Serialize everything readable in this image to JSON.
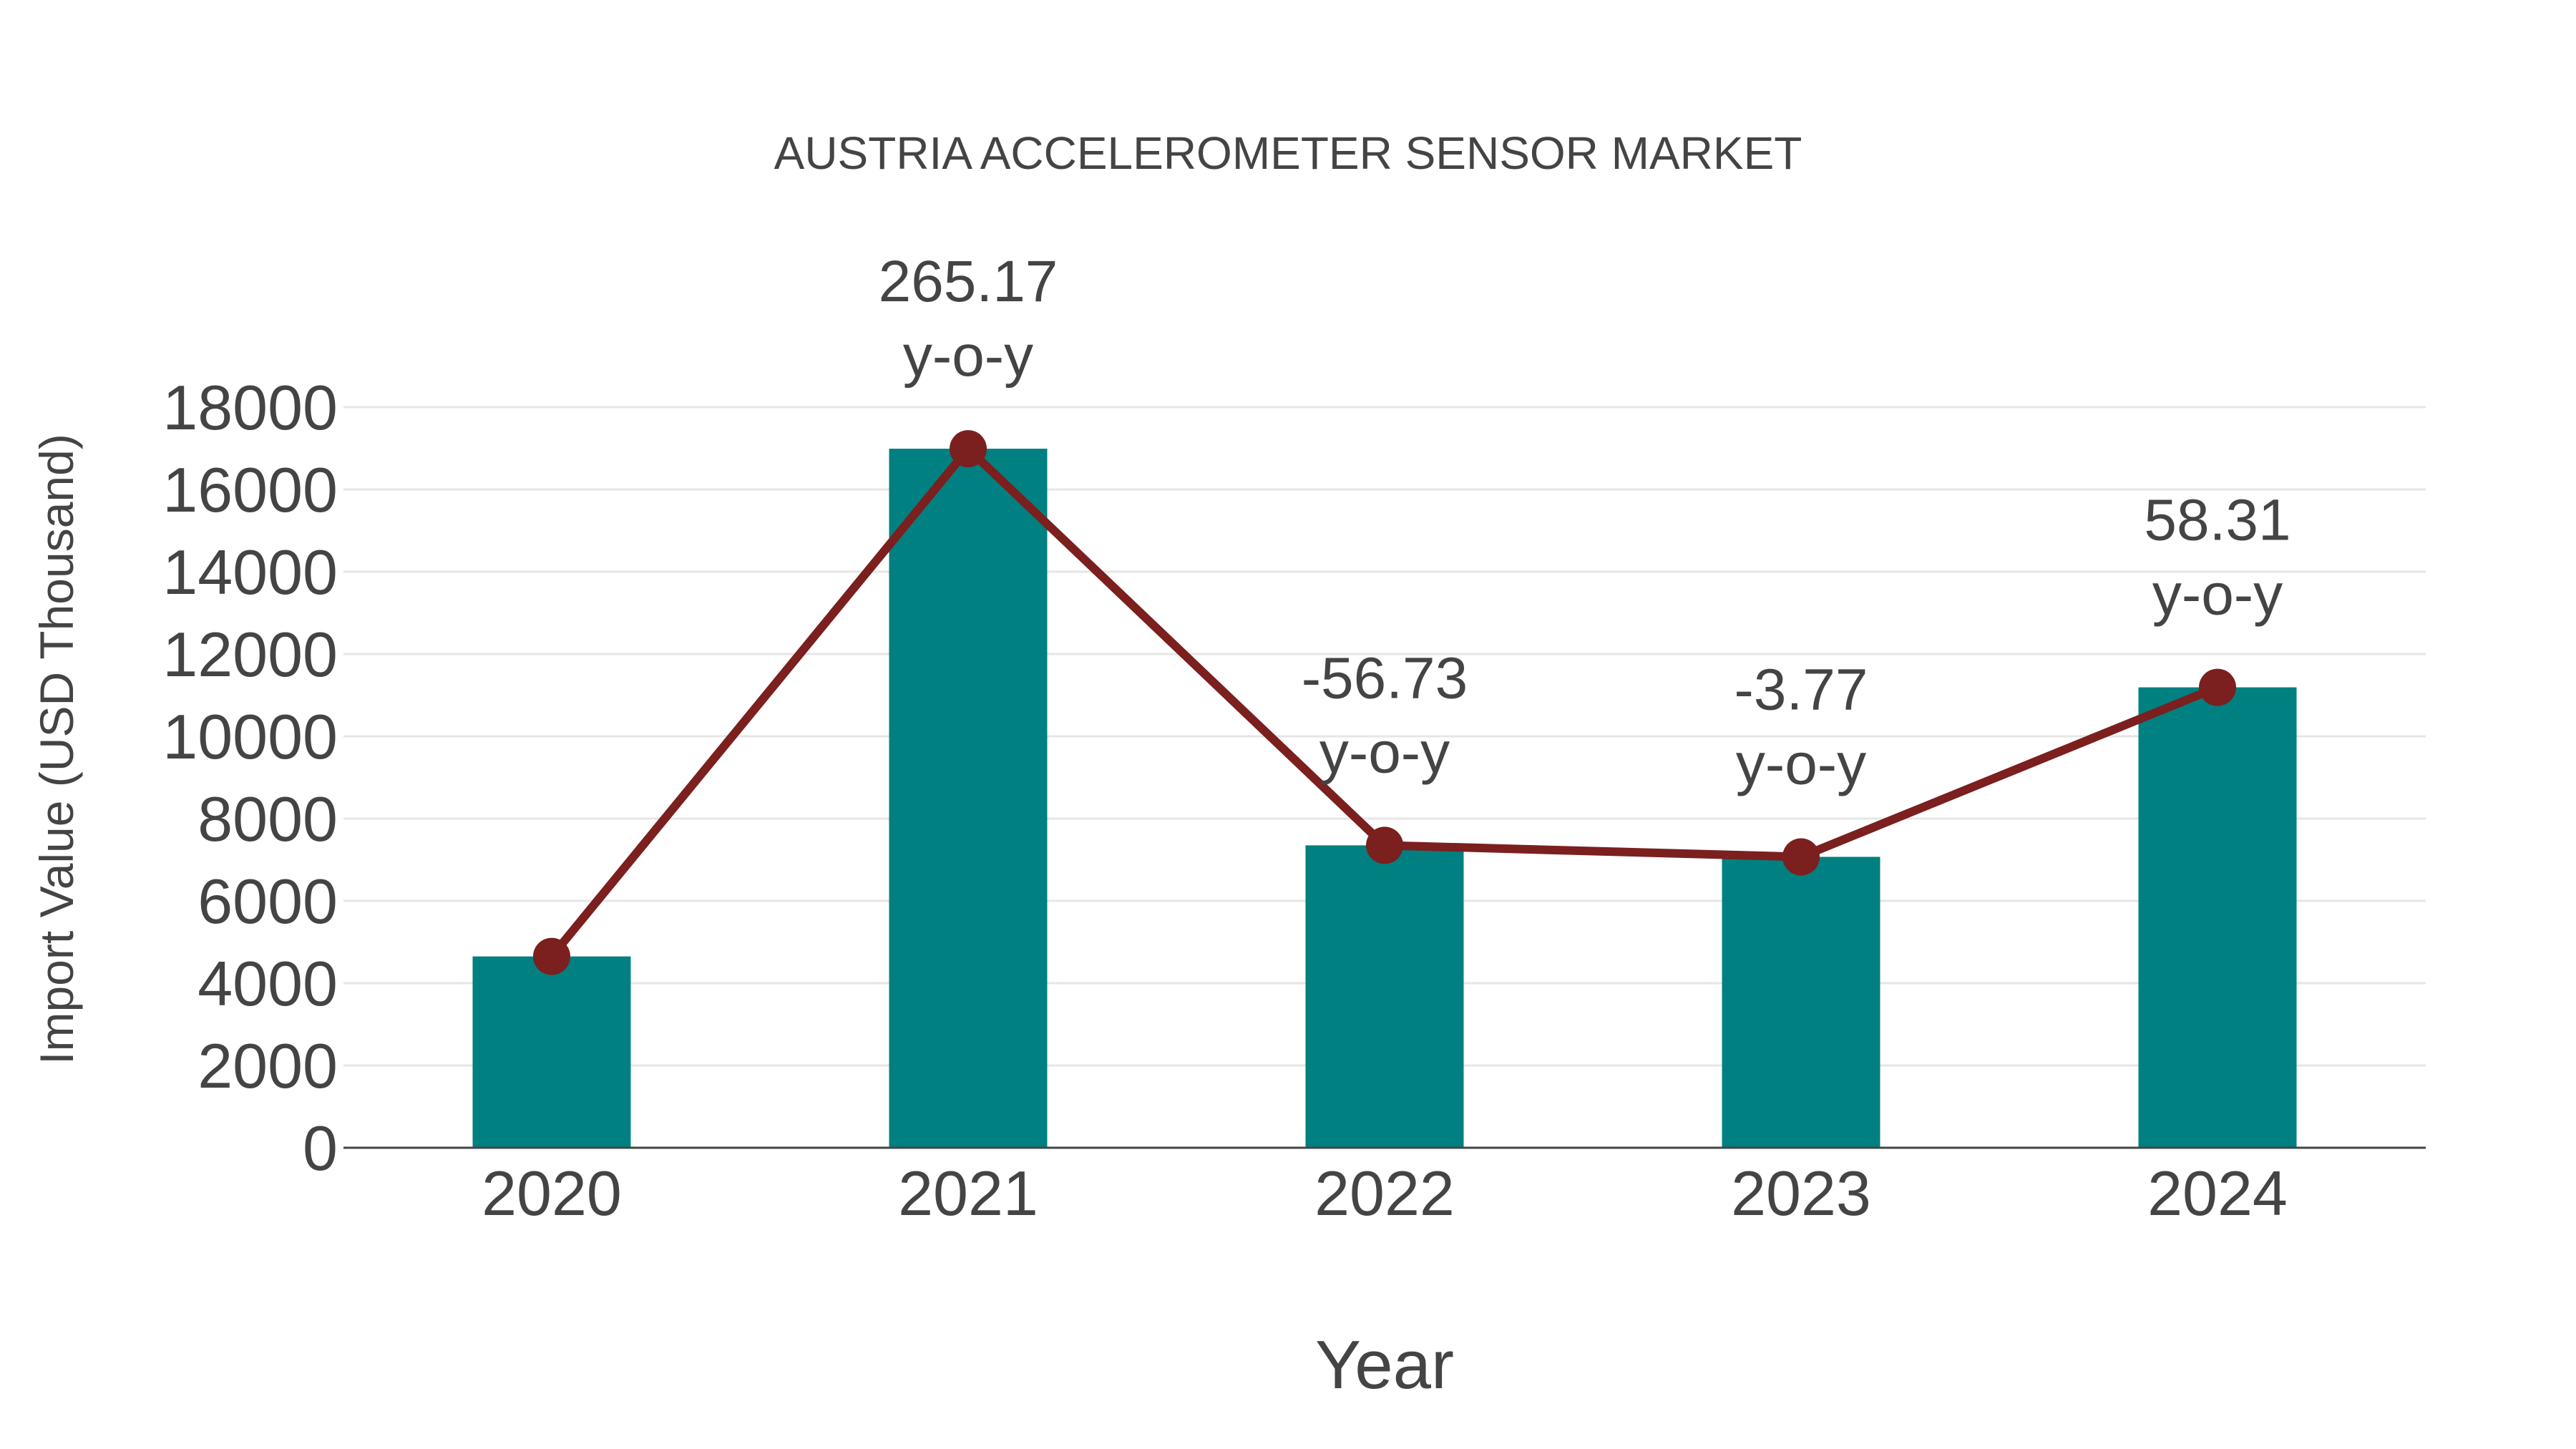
{
  "chart_data": {
    "type": "bar",
    "title": "AUSTRIA ACCELEROMETER SENSOR MARKET",
    "xlabel": "Year",
    "ylabel": "Import Value (USD Thousand)",
    "categories": [
      "2020",
      "2021",
      "2022",
      "2023",
      "2024"
    ],
    "series": [
      {
        "name": "Import Value",
        "type": "bar",
        "color": "#008080",
        "values": [
          4650,
          16990,
          7350,
          7070,
          11190
        ]
      },
      {
        "name": "Import Value trend",
        "type": "line",
        "color": "#7B1F1F",
        "values": [
          4650,
          16990,
          7350,
          7070,
          11190
        ]
      }
    ],
    "annotations": [
      {
        "category": "2021",
        "value": "265.17",
        "suffix": "y-o-y"
      },
      {
        "category": "2022",
        "value": "-56.73",
        "suffix": "y-o-y"
      },
      {
        "category": "2023",
        "value": "-3.77",
        "suffix": "y-o-y"
      },
      {
        "category": "2024",
        "value": "58.31",
        "suffix": "y-o-y"
      }
    ],
    "yticks": [
      0,
      2000,
      4000,
      6000,
      8000,
      10000,
      12000,
      14000,
      16000,
      18000
    ],
    "ylim": [
      0,
      18000
    ],
    "grid": true,
    "legend": "none"
  },
  "colors": {
    "bar": "#008080",
    "line": "#7B1F1F",
    "text": "#444444",
    "grid": "#E6E6E6",
    "axis": "#444444"
  }
}
